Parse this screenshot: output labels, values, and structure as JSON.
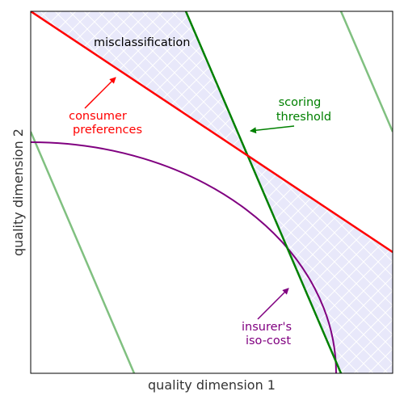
{
  "axes": {
    "xlabel": "quality dimension 1",
    "ylabel": "quality dimension 2",
    "ticks_shown": false,
    "grid": false
  },
  "colors": {
    "consumer_preferences": "#ff0000",
    "scoring_threshold": "#008000",
    "faint_threshold": "#80c080",
    "iso_cost": "#800080",
    "misclassification_fill": "#e8e8fa",
    "hatch": "#ffffff",
    "frame": "#000000"
  },
  "annotations": {
    "misclassification": "misclassification",
    "consumer_line1": "consumer",
    "consumer_line2": "preferences",
    "scoring_line1": "scoring",
    "scoring_line2": "threshold",
    "isocost_line1": "insurer's",
    "isocost_line2": "iso-cost"
  },
  "chart_data": {
    "type": "diagram",
    "title": "",
    "xlabel": "quality dimension 1",
    "ylabel": "quality dimension 2",
    "xlim": [
      0,
      1
    ],
    "ylim": [
      0,
      1
    ],
    "curves": [
      {
        "name": "consumer preferences",
        "kind": "line",
        "points": [
          [
            0,
            1
          ],
          [
            1,
            0.335
          ]
        ],
        "color": "#ff0000"
      },
      {
        "name": "scoring threshold",
        "kind": "line",
        "points": [
          [
            0.427,
            1
          ],
          [
            0.857,
            0
          ]
        ],
        "color": "#008000"
      },
      {
        "name": "faint threshold (lower-left)",
        "kind": "line",
        "points": [
          [
            0,
            0.665
          ],
          [
            0.285,
            0
          ]
        ],
        "color": "#80c080"
      },
      {
        "name": "faint threshold (upper-right)",
        "kind": "line",
        "points": [
          [
            0.857,
            1
          ],
          [
            1,
            0.665
          ]
        ],
        "color": "#80c080"
      },
      {
        "name": "insurer's iso-cost",
        "kind": "curve",
        "form": "quarter-ellipse",
        "center": [
          0,
          0
        ],
        "radii": [
          0.845,
          0.637
        ],
        "color": "#800080"
      }
    ],
    "shaded_regions": [
      "between consumer preferences line and scoring threshold line (misclassification)"
    ]
  }
}
